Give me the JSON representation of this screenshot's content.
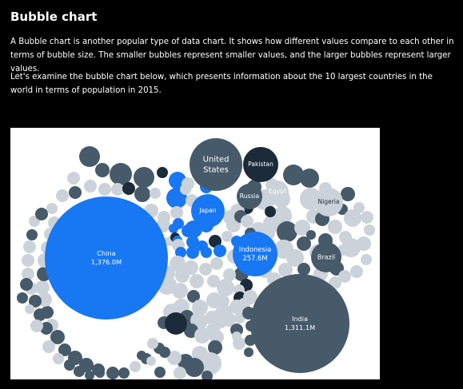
{
  "article": {
    "title": "Bubble chart",
    "paragraph_1": "A Bubble chart is another popular type of data chart. It shows how different values compare to each other in terms of bubble size. The smaller bubbles represent smaller values, and the larger bubbles represent larger values.",
    "paragraph_2": "Let's examine the bubble chart below, which presents information about the 10 largest countries in the world in terms of population in 2015."
  },
  "colors": {
    "background": "#000000",
    "panel": "#ffffff",
    "blue": "#1877f2",
    "slate": "#465a69",
    "dark": "#1c2b39",
    "light": "#cbd2d9"
  },
  "chart_data": {
    "type": "bubble",
    "title": "10 largest countries in the world by population, 2015",
    "unit": "M",
    "points": [
      {
        "name": "China",
        "value_label": "1,376.0M",
        "value": 1376.0
      },
      {
        "name": "India",
        "value_label": "1,311.1M",
        "value": 1311.1
      },
      {
        "name": "United States",
        "value_label": "",
        "value": 322
      },
      {
        "name": "Indonesia",
        "value_label": "257.6M",
        "value": 257.6
      },
      {
        "name": "Brazil",
        "value_label": "",
        "value": 208
      },
      {
        "name": "Pakistan",
        "value_label": "",
        "value": 189
      },
      {
        "name": "Nigeria",
        "value_label": "",
        "value": 182
      },
      {
        "name": "Russia",
        "value_label": "",
        "value": 143
      },
      {
        "name": "Japan",
        "value_label": "",
        "value": 127
      },
      {
        "name": "Egypt",
        "value_label": "",
        "value": 92
      }
    ]
  }
}
